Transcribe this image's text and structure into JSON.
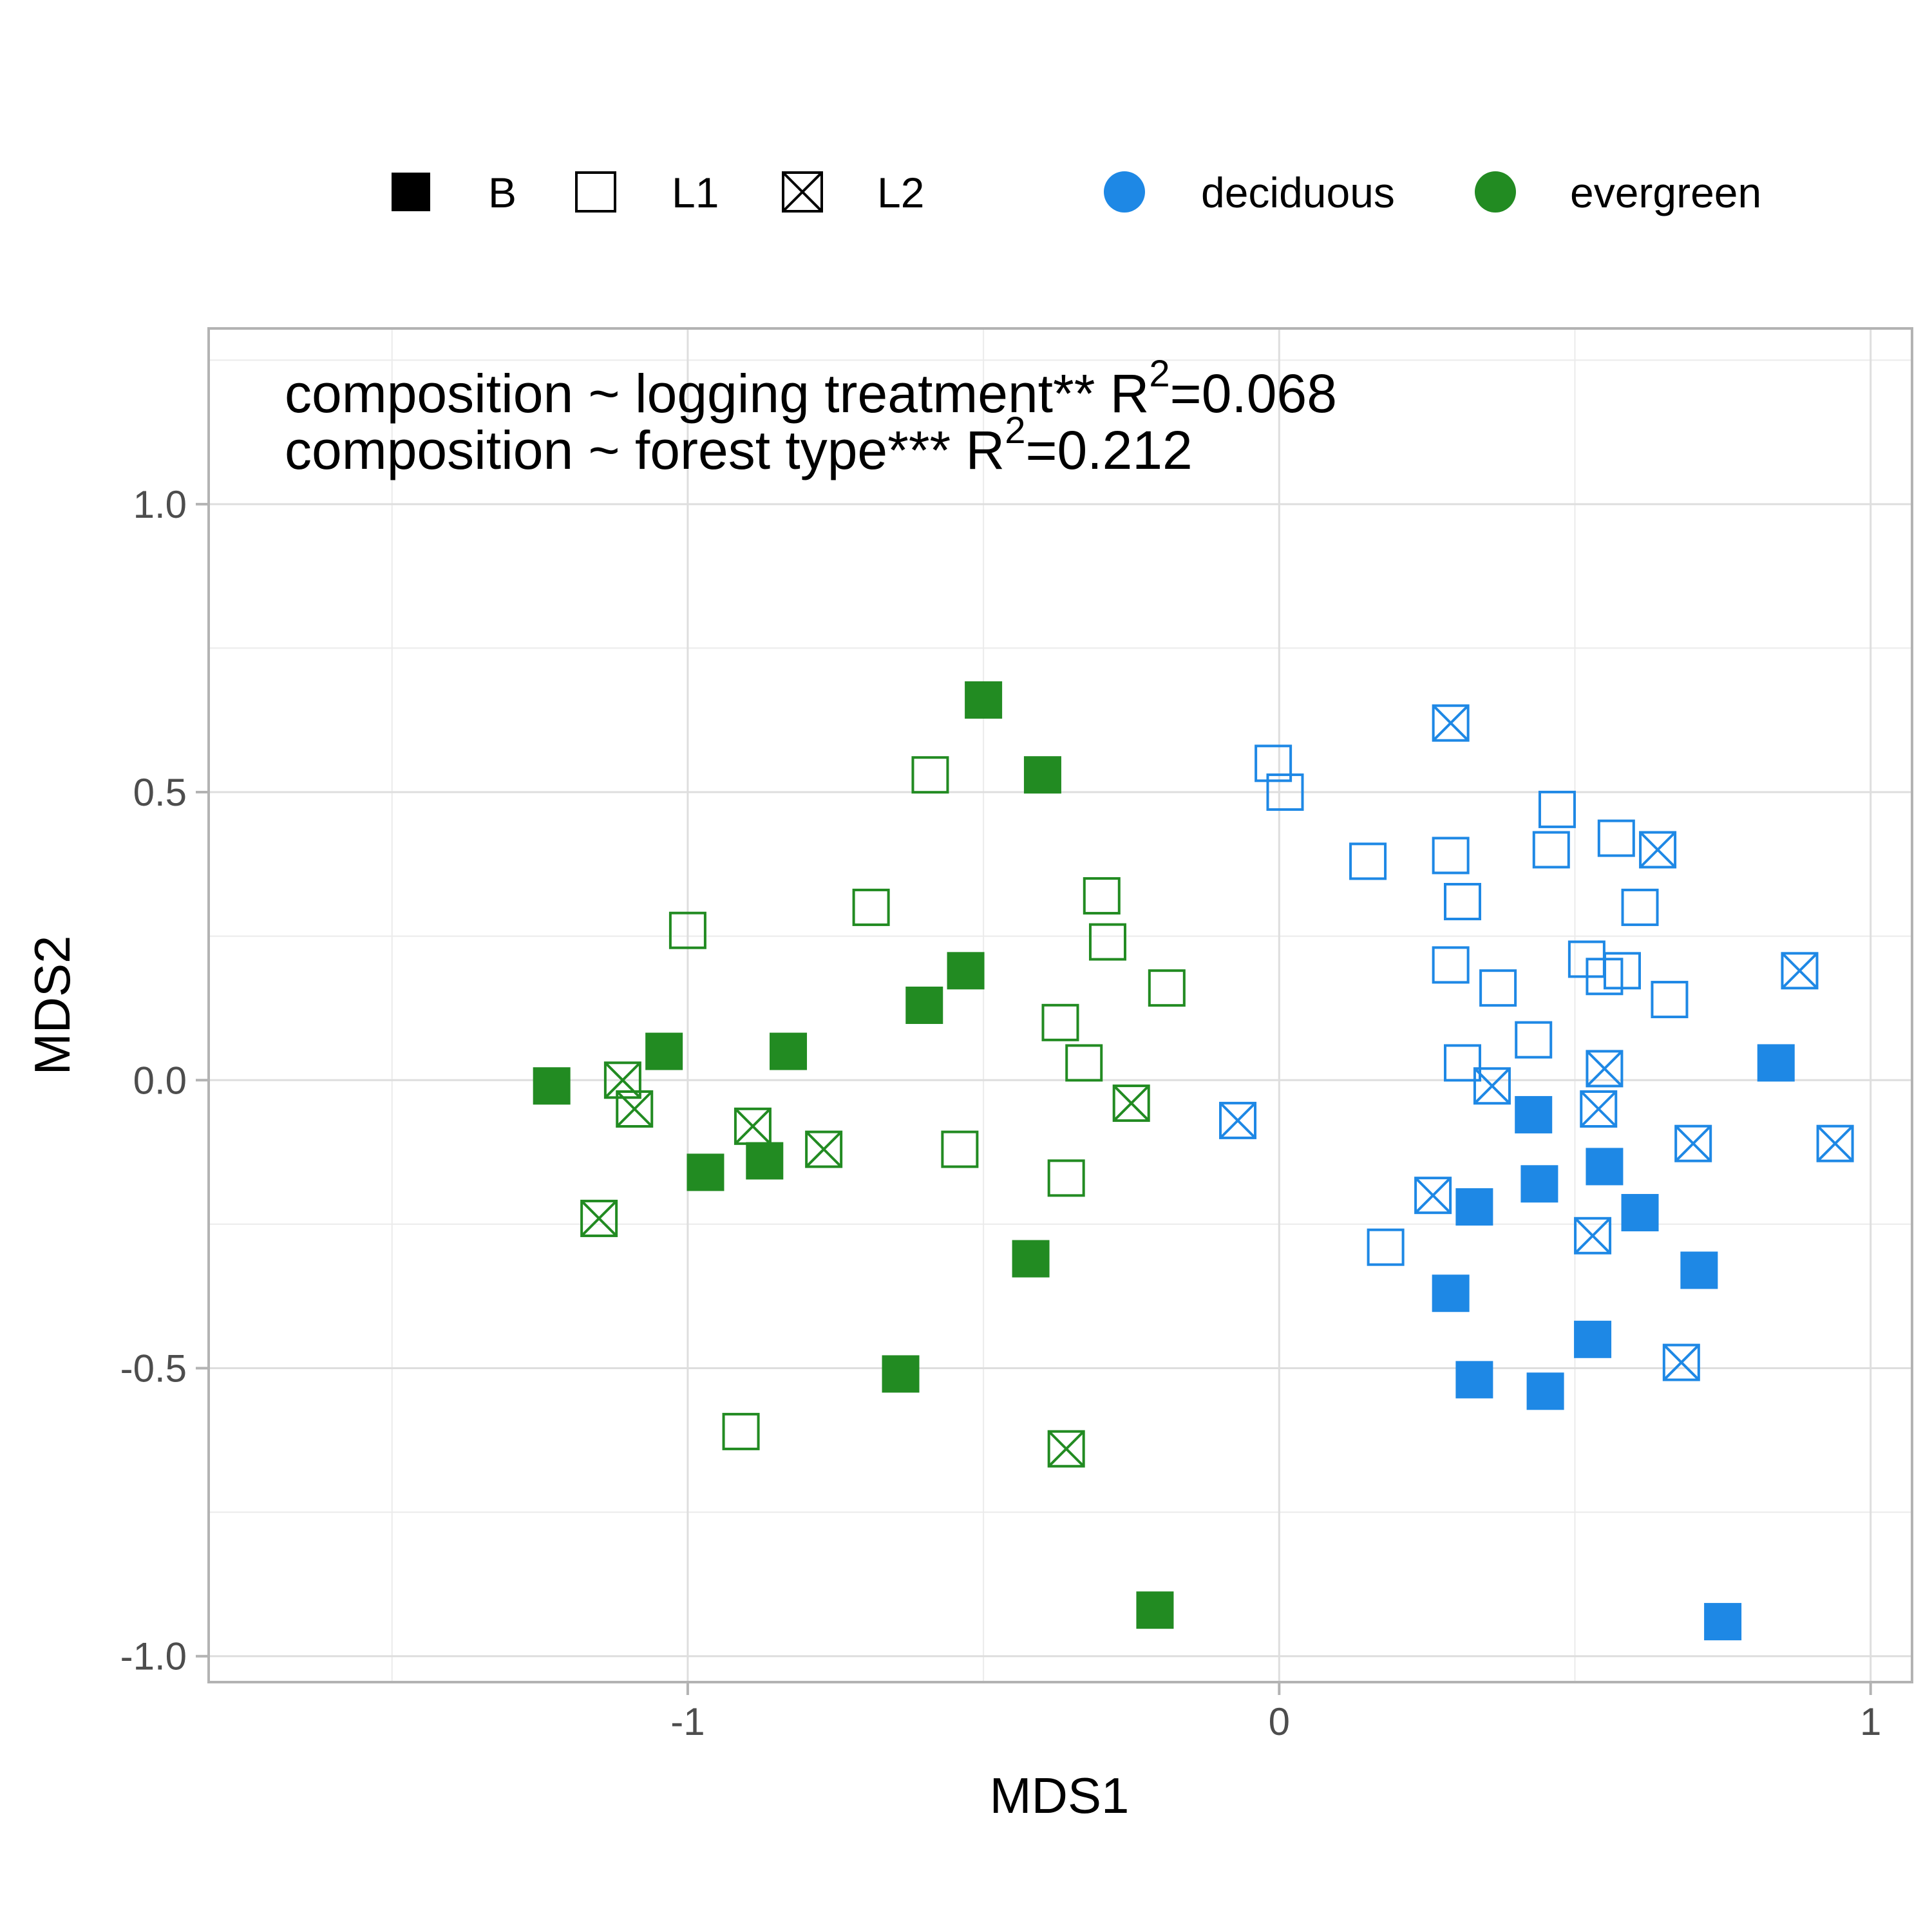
{
  "chart_data": {
    "type": "scatter",
    "title": "",
    "xlabel": "MDS1",
    "ylabel": "MDS2",
    "xlim": [
      -1.81,
      1.07
    ],
    "ylim": [
      -1.045,
      1.305
    ],
    "x_ticks": [
      -1,
      0,
      1
    ],
    "y_ticks": [
      1.0,
      0.5,
      0.0,
      -0.5,
      -1.0
    ],
    "x_tick_labels": [
      "-1",
      "0",
      "1"
    ],
    "y_tick_labels": [
      "1.0",
      "0.5",
      "0.0",
      "-0.5",
      "-1.0"
    ],
    "grid": true,
    "legend_position": "top",
    "annotations": [
      {
        "text": "composition ~ logging treatment** R",
        "sup": "2",
        "after": "=0.068"
      },
      {
        "text": "composition ~ forest type*** R",
        "sup": "2",
        "after": "=0.212"
      }
    ],
    "shape_legend": [
      {
        "key": "B",
        "label": "B",
        "marker": "filled-square"
      },
      {
        "key": "L1",
        "label": "L1",
        "marker": "open-square"
      },
      {
        "key": "L2",
        "label": "L2",
        "marker": "crossed-square"
      }
    ],
    "color_legend": [
      {
        "key": "deciduous",
        "label": "deciduous",
        "color": "#1e88e5"
      },
      {
        "key": "evergreen",
        "label": "evergreen",
        "color": "#228b22"
      }
    ],
    "series": [
      {
        "forest": "evergreen",
        "treatment": "B",
        "points": [
          [
            -0.5,
            0.66
          ],
          [
            -0.4,
            0.53
          ],
          [
            -0.53,
            0.19
          ],
          [
            -0.6,
            0.13
          ],
          [
            -1.04,
            0.05
          ],
          [
            -0.83,
            0.05
          ],
          [
            -1.23,
            -0.01
          ],
          [
            -0.97,
            -0.16
          ],
          [
            -0.87,
            -0.14
          ],
          [
            -0.42,
            -0.31
          ],
          [
            -0.64,
            -0.51
          ],
          [
            -0.21,
            -0.92
          ]
        ]
      },
      {
        "forest": "evergreen",
        "treatment": "L1",
        "points": [
          [
            -0.59,
            0.53
          ],
          [
            -0.69,
            0.3
          ],
          [
            -1.0,
            0.26
          ],
          [
            -0.3,
            0.32
          ],
          [
            -0.29,
            0.24
          ],
          [
            -0.19,
            0.16
          ],
          [
            -0.37,
            0.1
          ],
          [
            -0.33,
            0.03
          ],
          [
            -0.54,
            -0.12
          ],
          [
            -0.36,
            -0.17
          ],
          [
            -0.91,
            -0.61
          ]
        ]
      },
      {
        "forest": "evergreen",
        "treatment": "L2",
        "points": [
          [
            -1.11,
            0.0
          ],
          [
            -1.09,
            -0.05
          ],
          [
            -0.89,
            -0.08
          ],
          [
            -0.77,
            -0.12
          ],
          [
            -0.25,
            -0.04
          ],
          [
            -1.15,
            -0.24
          ],
          [
            -0.36,
            -0.64
          ]
        ]
      },
      {
        "forest": "deciduous",
        "treatment": "B",
        "points": [
          [
            0.84,
            0.03
          ],
          [
            0.43,
            -0.06
          ],
          [
            0.55,
            -0.15
          ],
          [
            0.33,
            -0.22
          ],
          [
            0.44,
            -0.18
          ],
          [
            0.61,
            -0.23
          ],
          [
            0.71,
            -0.33
          ],
          [
            0.29,
            -0.37
          ],
          [
            0.53,
            -0.45
          ],
          [
            0.33,
            -0.52
          ],
          [
            0.45,
            -0.54
          ],
          [
            0.75,
            -0.94
          ]
        ]
      },
      {
        "forest": "deciduous",
        "treatment": "L1",
        "points": [
          [
            -0.01,
            0.55
          ],
          [
            0.01,
            0.5
          ],
          [
            0.47,
            0.47
          ],
          [
            0.15,
            0.38
          ],
          [
            0.29,
            0.39
          ],
          [
            0.46,
            0.4
          ],
          [
            0.57,
            0.42
          ],
          [
            0.31,
            0.31
          ],
          [
            0.61,
            0.3
          ],
          [
            0.29,
            0.2
          ],
          [
            0.52,
            0.21
          ],
          [
            0.55,
            0.18
          ],
          [
            0.58,
            0.19
          ],
          [
            0.66,
            0.14
          ],
          [
            0.37,
            0.16
          ],
          [
            0.43,
            0.07
          ],
          [
            0.31,
            0.03
          ],
          [
            0.18,
            -0.29
          ]
        ]
      },
      {
        "forest": "deciduous",
        "treatment": "L2",
        "points": [
          [
            0.29,
            0.62
          ],
          [
            0.64,
            0.4
          ],
          [
            0.88,
            0.19
          ],
          [
            0.55,
            0.02
          ],
          [
            0.36,
            -0.01
          ],
          [
            0.54,
            -0.05
          ],
          [
            -0.07,
            -0.07
          ],
          [
            0.7,
            -0.11
          ],
          [
            0.94,
            -0.11
          ],
          [
            0.26,
            -0.2
          ],
          [
            0.53,
            -0.27
          ],
          [
            0.68,
            -0.49
          ]
        ]
      }
    ]
  }
}
